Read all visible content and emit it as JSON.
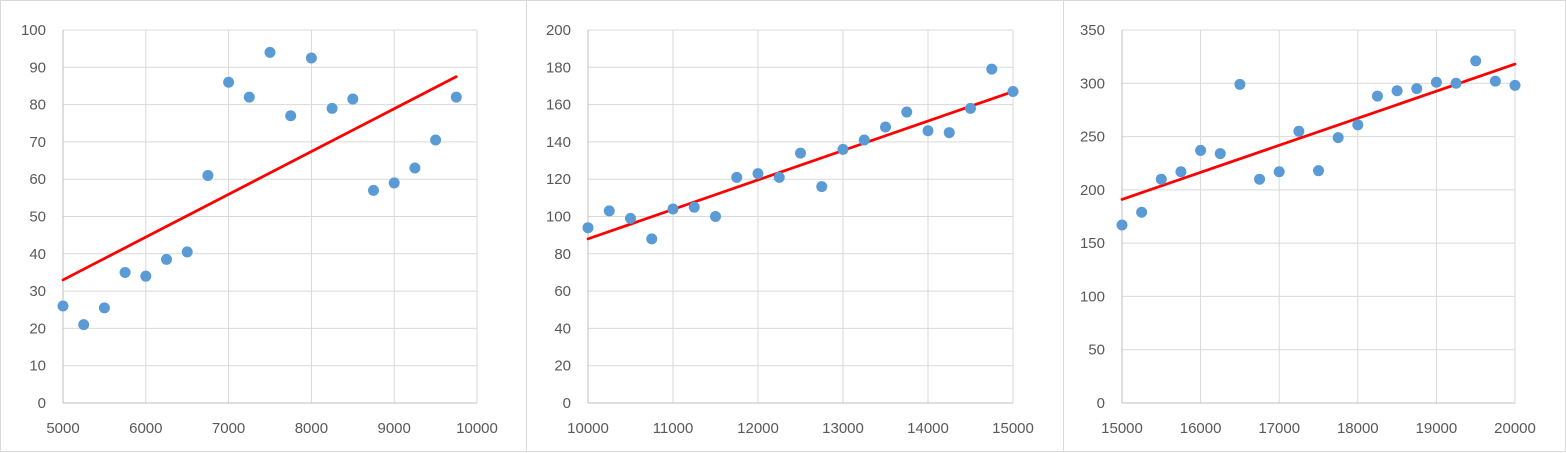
{
  "chart_data": [
    {
      "type": "scatter",
      "title": "",
      "xlabel": "",
      "ylabel": "",
      "xlim": [
        5000,
        10000
      ],
      "ylim": [
        0,
        100
      ],
      "xticks": [
        5000,
        6000,
        7000,
        8000,
        9000,
        10000
      ],
      "yticks": [
        0,
        10,
        20,
        30,
        40,
        50,
        60,
        70,
        80,
        90,
        100
      ],
      "grid": true,
      "legend": "none",
      "point_color": "#5b9bd5",
      "trendline_color": "#ff0000",
      "x": [
        5000,
        5250,
        5500,
        5750,
        6000,
        6250,
        6500,
        6750,
        7000,
        7250,
        7500,
        7750,
        8000,
        8250,
        8500,
        8750,
        9000,
        9250,
        9500,
        9750
      ],
      "y": [
        26,
        21,
        25.5,
        35,
        34,
        38.5,
        40.5,
        61,
        86,
        82,
        94,
        77,
        92.5,
        79,
        81.5,
        57,
        59,
        63,
        70.5,
        82
      ],
      "trendline": {
        "type": "linear",
        "x": [
          5000,
          9750
        ],
        "y": [
          33,
          87.5
        ]
      }
    },
    {
      "type": "scatter",
      "title": "",
      "xlabel": "",
      "ylabel": "",
      "xlim": [
        10000,
        15000
      ],
      "ylim": [
        0,
        200
      ],
      "xticks": [
        10000,
        11000,
        12000,
        13000,
        14000,
        15000
      ],
      "yticks": [
        0,
        20,
        40,
        60,
        80,
        100,
        120,
        140,
        160,
        180,
        200
      ],
      "grid": true,
      "legend": "none",
      "point_color": "#5b9bd5",
      "trendline_color": "#ff0000",
      "x": [
        10000,
        10250,
        10500,
        10750,
        11000,
        11250,
        11500,
        11750,
        12000,
        12250,
        12500,
        12750,
        13000,
        13250,
        13500,
        13750,
        14000,
        14250,
        14500,
        14750,
        15000
      ],
      "y": [
        94,
        103,
        99,
        88,
        104,
        105,
        100,
        121,
        123,
        121,
        134,
        116,
        136,
        141,
        148,
        156,
        146,
        145,
        158,
        179,
        167
      ],
      "trendline": {
        "type": "linear",
        "x": [
          10000,
          15000
        ],
        "y": [
          88,
          167
        ]
      }
    },
    {
      "type": "scatter",
      "title": "",
      "xlabel": "",
      "ylabel": "",
      "xlim": [
        15000,
        20000
      ],
      "ylim": [
        0,
        350
      ],
      "xticks": [
        15000,
        16000,
        17000,
        18000,
        19000,
        20000
      ],
      "yticks": [
        0,
        50,
        100,
        150,
        200,
        250,
        300,
        350
      ],
      "grid": true,
      "legend": "none",
      "point_color": "#5b9bd5",
      "trendline_color": "#ff0000",
      "x": [
        15000,
        15250,
        15500,
        15750,
        16000,
        16250,
        16500,
        16750,
        17000,
        17250,
        17500,
        17750,
        18000,
        18250,
        18500,
        18750,
        19000,
        19250,
        19500,
        19750,
        20000
      ],
      "y": [
        167,
        179,
        210,
        217,
        237,
        234,
        299,
        210,
        217,
        255,
        218,
        249,
        261,
        288,
        293,
        295,
        301,
        300,
        321,
        302,
        298
      ],
      "trendline": {
        "type": "linear",
        "x": [
          15000,
          20000
        ],
        "y": [
          191,
          318
        ]
      }
    }
  ]
}
